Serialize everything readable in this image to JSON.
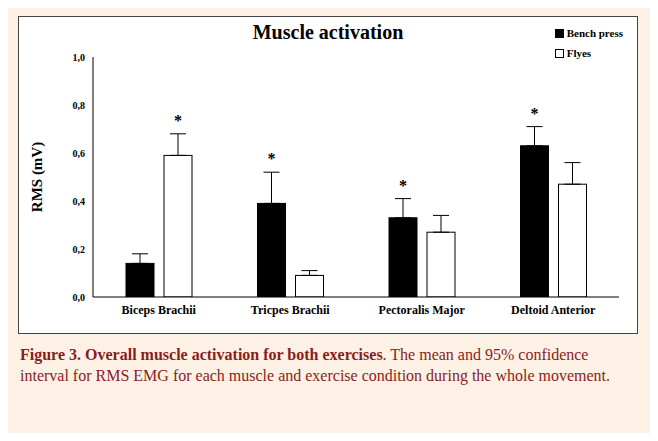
{
  "chart_data": {
    "type": "bar",
    "title": "Muscle activation",
    "y_label": "RMS (mV)",
    "categories": [
      "Biceps Brachii",
      "Tricpes Brachii",
      "Pectoralis Major",
      "Deltoid Anterior"
    ],
    "series": [
      {
        "name": "Bench press",
        "color": "#000000",
        "values": [
          0.14,
          0.39,
          0.33,
          0.63
        ],
        "error": [
          0.04,
          0.13,
          0.08,
          0.08
        ],
        "annotations": [
          null,
          "*",
          "*",
          "*"
        ]
      },
      {
        "name": "Flyes",
        "color": "#ffffff",
        "values": [
          0.59,
          0.09,
          0.27,
          0.47
        ],
        "error": [
          0.09,
          0.02,
          0.07,
          0.09
        ],
        "annotations": [
          "*",
          null,
          null,
          null
        ]
      }
    ],
    "ylim": [
      0,
      1
    ],
    "yticks": [
      {
        "value": 0,
        "label": "0,0"
      },
      {
        "value": 0.2,
        "label": "0,2"
      },
      {
        "value": 0.4,
        "label": "0,4"
      },
      {
        "value": 0.6,
        "label": "0,6"
      },
      {
        "value": 0.8,
        "label": "0,8"
      },
      {
        "value": 1,
        "label": "1,0"
      }
    ],
    "grid": false,
    "legend": "upper right",
    "caption": {
      "title": "Figure 3. Overall muscle activation for both exercises",
      "text": ". The mean and 95% confidence interval for RMS EMG for each muscle and exercise condition during the whole movement."
    }
  }
}
